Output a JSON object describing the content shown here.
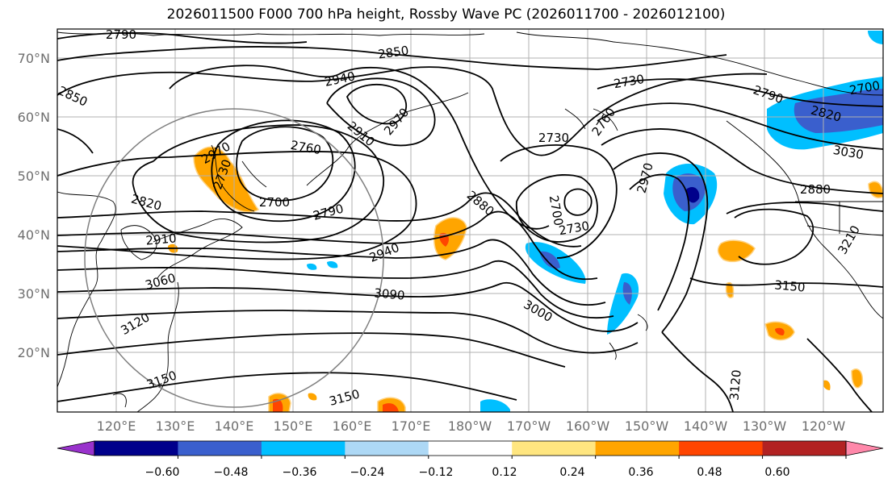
{
  "title": "2026011500 F000 700 hPa height, Rossby Wave PC (2026011700 - 2026012100)",
  "lat_labels": [
    "70°N",
    "60°N",
    "50°N",
    "40°N",
    "30°N",
    "20°N"
  ],
  "lon_labels": [
    "120°E",
    "130°E",
    "140°E",
    "150°E",
    "160°E",
    "170°E",
    "180°W",
    "170°W",
    "160°W",
    "150°W",
    "140°W",
    "130°W",
    "120°W"
  ],
  "colorbar": {
    "ticks": [
      "−0.60",
      "−0.48",
      "−0.36",
      "−0.24",
      "−0.12",
      "0.12",
      "0.24",
      "0.36",
      "0.48",
      "0.60"
    ],
    "colors": [
      "#9932cc",
      "#00008b",
      "#3a5fcd",
      "#00bfff",
      "#add8f5",
      "#ffffff",
      "#ffe680",
      "#ffa500",
      "#ff4500",
      "#b22222",
      "#ff88aa"
    ]
  },
  "contour_labels": [
    "2790",
    "2850",
    "2940",
    "2850",
    "2730",
    "2790",
    "2700",
    "2820",
    "2970",
    "2910",
    "2970",
    "2760",
    "2730",
    "2760",
    "2820",
    "2700",
    "2730",
    "2790",
    "2970",
    "2880",
    "2910",
    "2730",
    "2700",
    "3030",
    "2880",
    "2940",
    "3060",
    "3090",
    "3000",
    "3210",
    "3150",
    "3120",
    "3150",
    "3150",
    "3120"
  ],
  "colors": {
    "contour": "#000000",
    "grid": "#b0b0b0",
    "axis_label": "#6e6e6e"
  }
}
